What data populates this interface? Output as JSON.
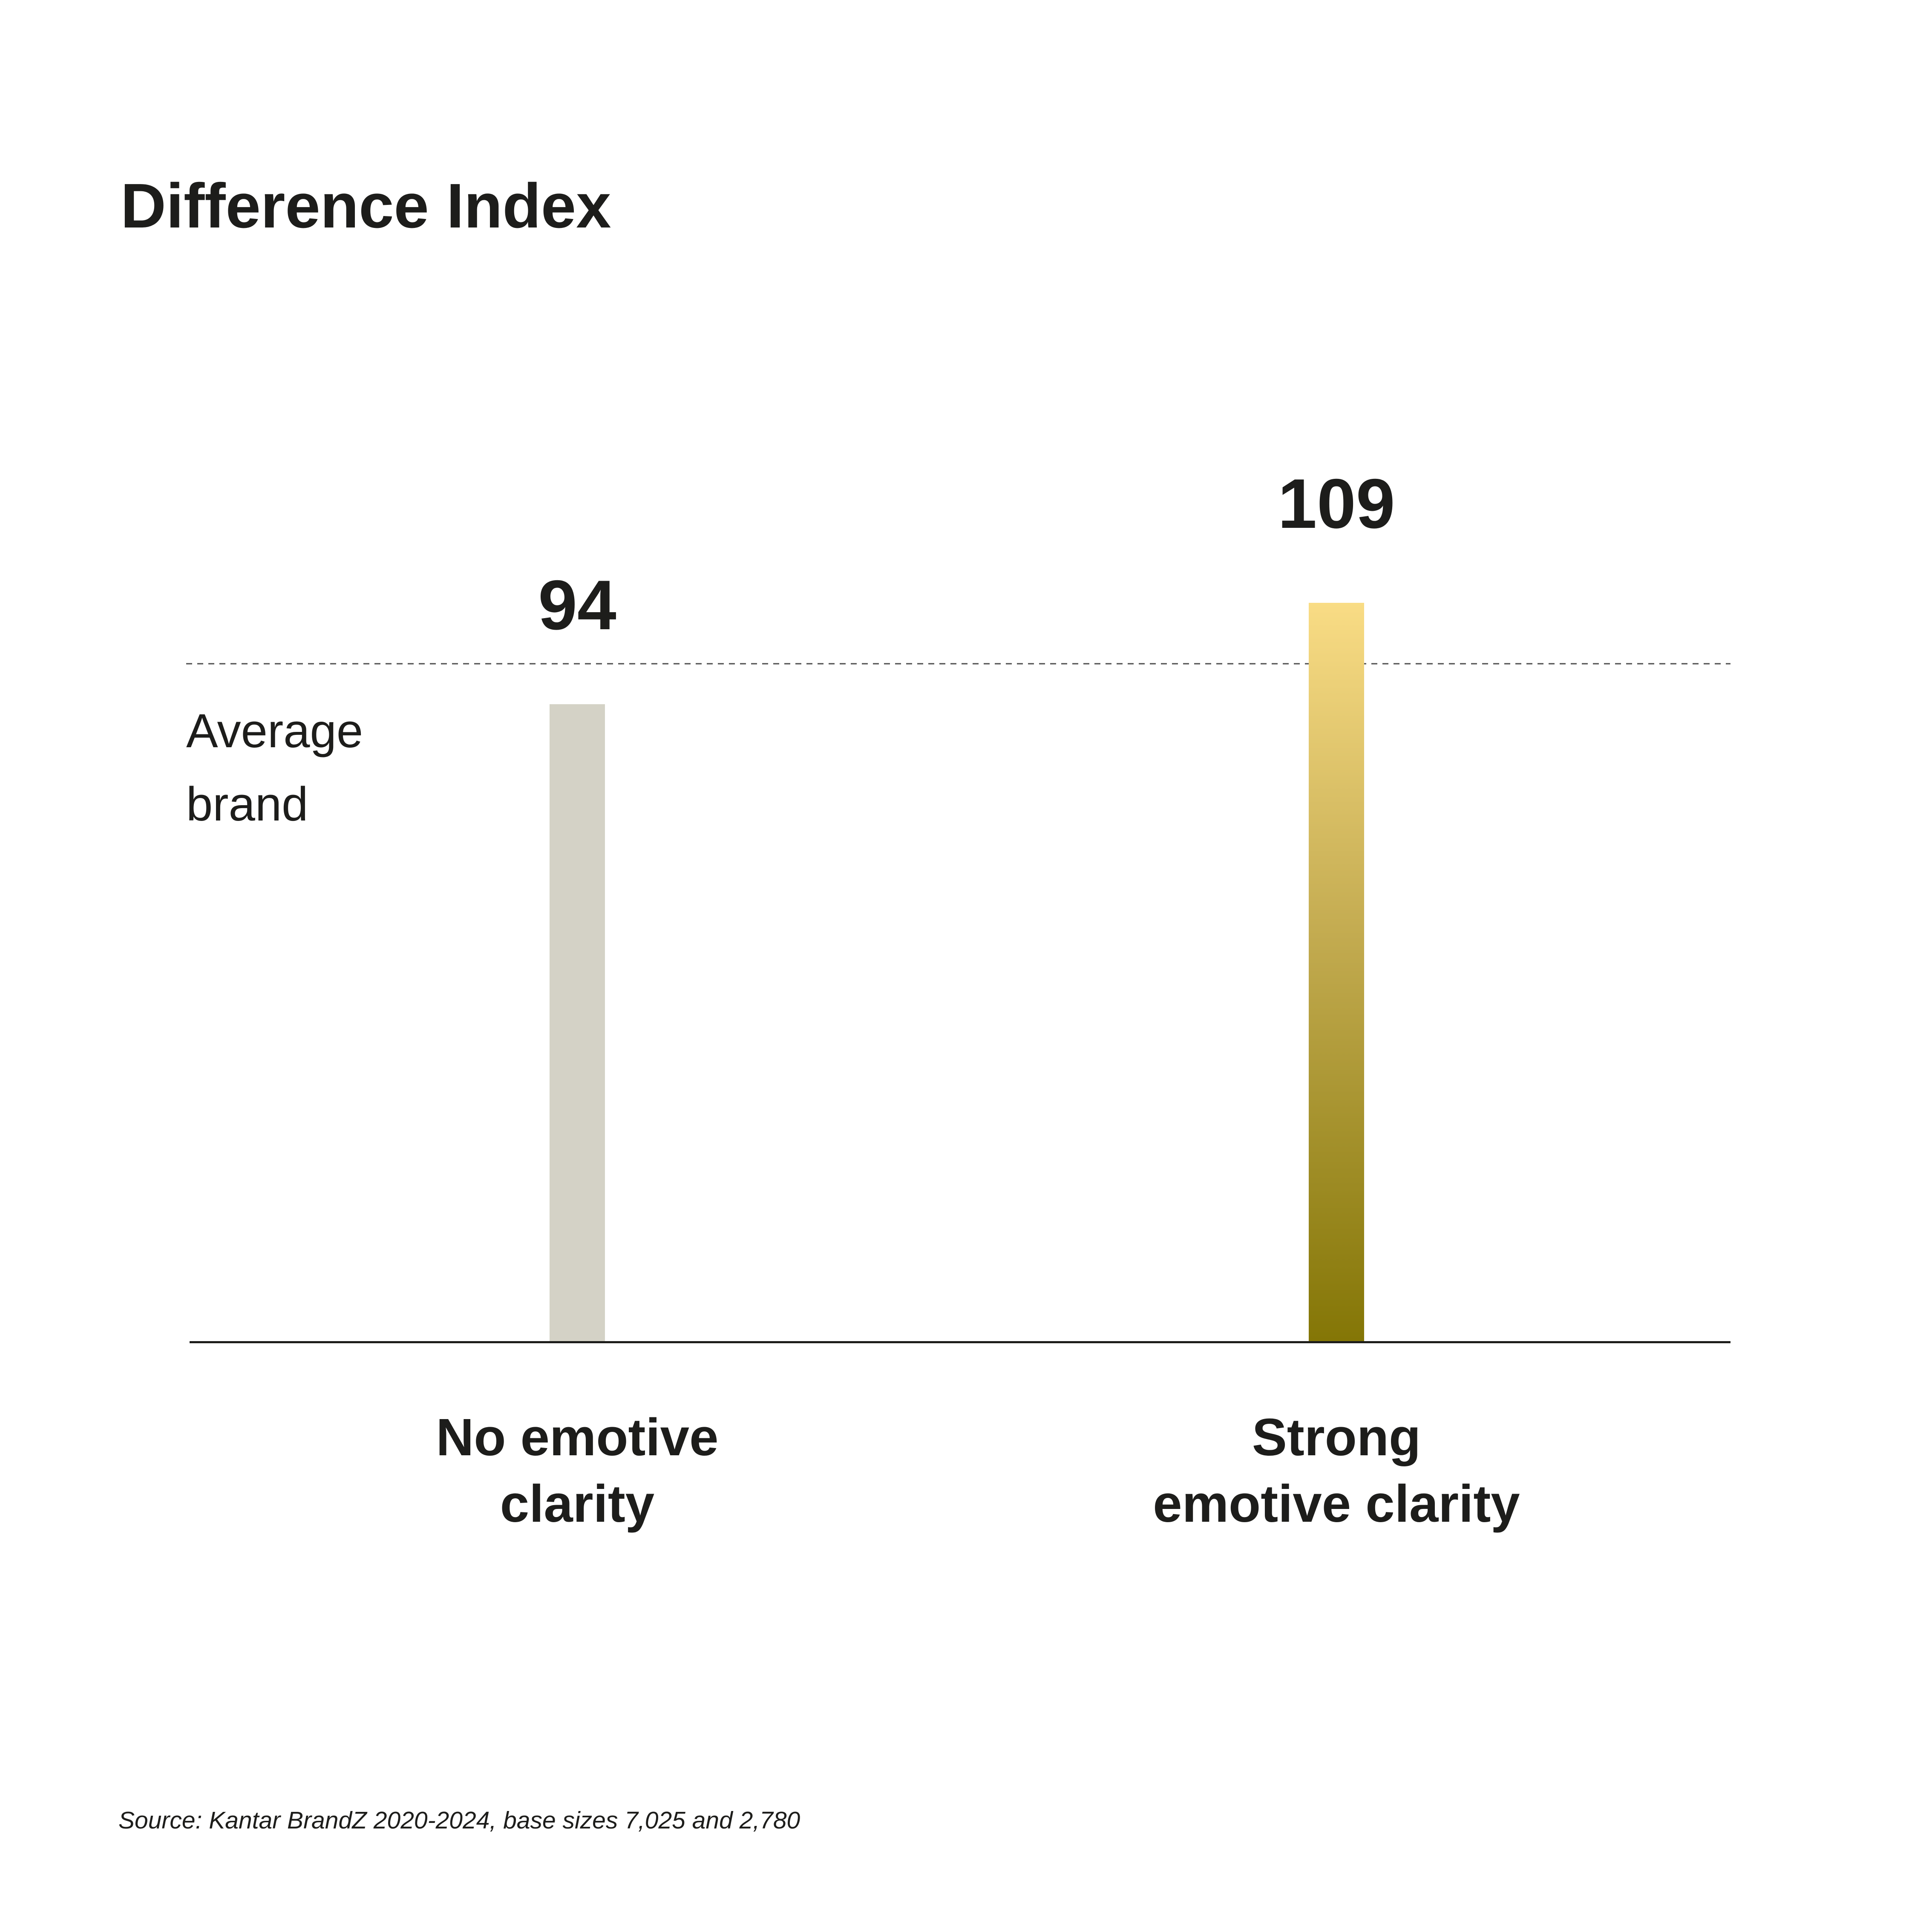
{
  "title": "Difference Index",
  "source": "Source: Kantar BrandZ 2020-2024, base sizes 7,025 and 2,780",
  "reference": {
    "label_line1": "Average",
    "label_line2": "brand",
    "value": 100
  },
  "bars": [
    {
      "value_label": "94",
      "label_line1": "No emotive",
      "label_line2": "clarity"
    },
    {
      "value_label": "109",
      "label_line1": "Strong",
      "label_line2": "emotive clarity"
    }
  ],
  "colors": {
    "background": "#ffffff",
    "text": "#1d1d1b",
    "bar_no_clarity": "#d4d2c6",
    "bar_strong_top": "#f9dc85",
    "bar_strong_mid": "#c3ab50",
    "bar_strong_bottom": "#847606",
    "reference_line": "#4d4d4d",
    "axis_line": "#1d1d1b"
  },
  "chart_data": {
    "type": "bar",
    "title": "Difference Index",
    "categories": [
      "No emotive clarity",
      "Strong emotive clarity"
    ],
    "values": [
      94,
      109
    ],
    "reference_line": {
      "label": "Average brand",
      "value": 100
    },
    "xlabel": "",
    "ylabel": "",
    "ylim": [
      0,
      115
    ],
    "grid": false,
    "legend": false,
    "annotations": [
      "94",
      "109"
    ],
    "bar_styles": [
      {
        "fill": "#d4d2c6"
      },
      {
        "fill": "linear-gradient #f9dc85 to #847606"
      }
    ],
    "footnote": "Source: Kantar BrandZ 2020-2024, base sizes 7,025 and 2,780"
  }
}
